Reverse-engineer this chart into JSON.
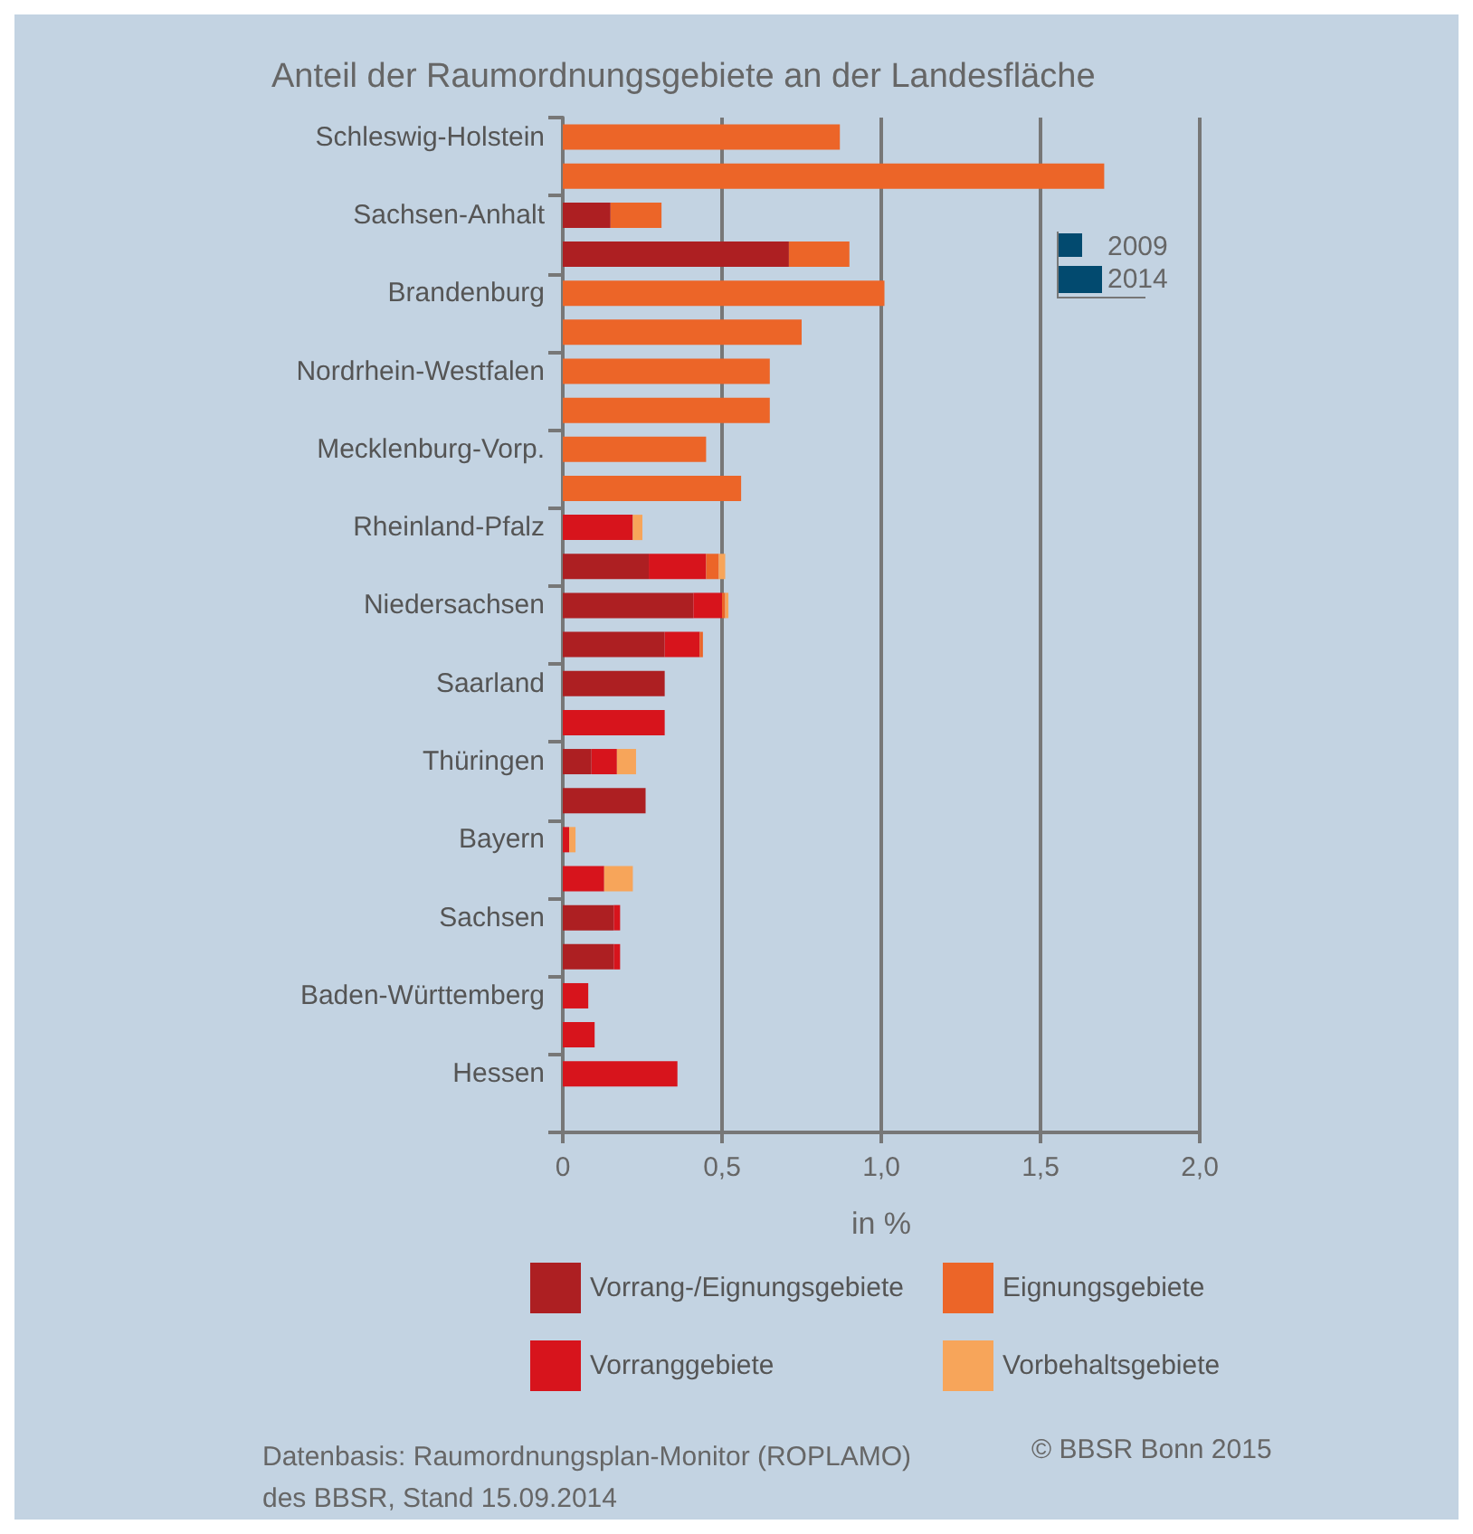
{
  "chart_data": {
    "type": "bar",
    "orientation": "horizontal",
    "stacked": true,
    "title": "Anteil der Raumordnungsgebiete an der Landesfläche",
    "xlabel": "in %",
    "categories": [
      "Schleswig-Holstein",
      null,
      "Sachsen-Anhalt",
      null,
      "Brandenburg",
      null,
      "Nordrhein-Westfalen",
      null,
      "Mecklenburg-Vorp.",
      null,
      "Rheinland-Pfalz",
      null,
      "Niedersachsen",
      null,
      "Saarland",
      null,
      "Thüringen",
      null,
      "Bayern",
      null,
      "Sachsen",
      null,
      "Baden-Württemberg",
      null,
      "Hessen",
      null
    ],
    "series": [
      {
        "name": "Vorrang-/Eignungsgebiete",
        "color": "#ad1f22",
        "values": [
          null,
          null,
          0.15,
          0.71,
          null,
          null,
          null,
          null,
          null,
          null,
          null,
          0.27,
          0.41,
          0.32,
          0.32,
          null,
          0.09,
          0.26,
          null,
          null,
          0.16,
          0.16,
          null,
          null,
          null,
          null
        ]
      },
      {
        "name": "Vorranggebiete",
        "color": "#d7141c",
        "values": [
          null,
          null,
          null,
          null,
          null,
          null,
          null,
          null,
          null,
          null,
          0.22,
          0.18,
          0.09,
          0.11,
          null,
          0.32,
          0.08,
          null,
          0.02,
          0.13,
          0.02,
          0.02,
          0.08,
          0.1,
          0.36,
          null
        ]
      },
      {
        "name": "Eignungsgebiete",
        "color": "#ec6528",
        "values": [
          0.87,
          1.7,
          0.16,
          0.19,
          1.01,
          0.75,
          0.65,
          0.65,
          0.45,
          0.56,
          null,
          0.04,
          0.01,
          0.01,
          null,
          null,
          null,
          null,
          null,
          null,
          null,
          null,
          null,
          null,
          null,
          null
        ]
      },
      {
        "name": "Vorbehaltsgebiete",
        "color": "#f7a55a",
        "values": [
          null,
          null,
          null,
          null,
          null,
          null,
          null,
          null,
          null,
          null,
          0.03,
          0.02,
          0.01,
          null,
          null,
          null,
          0.06,
          null,
          0.02,
          0.09,
          null,
          null,
          null,
          null,
          null,
          null
        ]
      }
    ],
    "xlim": [
      0,
      2
    ],
    "xticks": [
      {
        "value": 0,
        "label": "0"
      },
      {
        "value": 0.5,
        "label": "0,5"
      },
      {
        "value": 1,
        "label": "1,0"
      },
      {
        "value": 1.5,
        "label": "1,5"
      },
      {
        "value": 2,
        "label": "2,0"
      }
    ],
    "grid": "x",
    "legend": "bottom",
    "annotations": [
      "Datenbasis: Raumordnungsplan-Monitor (ROPLAMO)\ndes BBSR, Stand 15.09.2014",
      "© BBSR Bonn 2015",
      "2009",
      "2014"
    ]
  }
}
